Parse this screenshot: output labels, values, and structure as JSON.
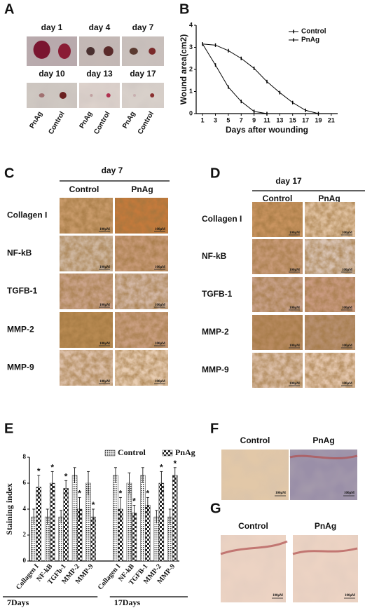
{
  "panel_labels": [
    "A",
    "B",
    "C",
    "D",
    "E",
    "F",
    "G"
  ],
  "panel_a": {
    "days": [
      "day 1",
      "day 4",
      "day   7",
      "day 10",
      "day 13",
      "day 17"
    ],
    "groups": [
      "PnAg",
      "Control"
    ]
  },
  "chart_data": [
    {
      "type": "line",
      "xlabel": "Days after wounding",
      "ylabel": "Wound area(cm2)",
      "xlim": [
        0,
        22
      ],
      "ylim": [
        0,
        4
      ],
      "xticks": [
        1,
        3,
        5,
        7,
        9,
        11,
        13,
        15,
        17,
        19,
        21
      ],
      "yticks": [
        0,
        1,
        2,
        3,
        4
      ],
      "x": [
        1,
        3,
        5,
        7,
        9,
        11,
        13,
        15,
        17,
        19
      ],
      "legend": "upper right",
      "series": [
        {
          "name": "Control",
          "color": "#000000",
          "values": [
            3.15,
            3.1,
            2.85,
            2.5,
            2.05,
            1.45,
            0.95,
            0.5,
            0.15,
            0
          ]
        },
        {
          "name": "PnAg",
          "color": "#000000",
          "values": [
            3.15,
            2.2,
            1.2,
            0.55,
            0.1,
            0,
            null,
            null,
            null,
            null
          ]
        }
      ]
    },
    {
      "type": "bar",
      "ylabel": "Staining index",
      "ylim": [
        0,
        8
      ],
      "yticks": [
        0,
        2,
        4,
        6,
        8
      ],
      "categories": [
        "Collagen I",
        "NF-kB",
        "TGFb-1",
        "MMP-2",
        "MMP-9",
        "Collagen I",
        "NF-kB",
        "TGFB-1",
        "MMP-2",
        "MMP-9"
      ],
      "groups": [
        "7Days",
        "17Days"
      ],
      "annotation": "*",
      "series": [
        {
          "name": "Control",
          "color": "#333333",
          "pattern": "dots",
          "values": [
            3.4,
            3.4,
            3.4,
            6.6,
            6.0,
            6.6,
            6.0,
            6.6,
            3.4,
            3.4
          ],
          "errors": [
            0.6,
            0.6,
            0.5,
            0.6,
            0.9,
            0.6,
            0.8,
            0.6,
            0.5,
            0.6
          ]
        },
        {
          "name": "PnAg",
          "color": "#333333",
          "pattern": "checker",
          "values": [
            5.7,
            6.0,
            5.6,
            4.0,
            3.4,
            4.0,
            3.7,
            4.3,
            6.0,
            6.6
          ],
          "errors": [
            0.9,
            0.9,
            0.6,
            0.9,
            0.6,
            0.9,
            0.6,
            0.6,
            0.9,
            0.6
          ]
        }
      ]
    }
  ],
  "panel_c": {
    "title": "day 7",
    "columns": [
      "Control",
      "PnAg"
    ],
    "rows": [
      "Collagen I",
      "NF-kB",
      "TGFB-1",
      "MMP-2",
      "MMP-9"
    ]
  },
  "panel_d": {
    "title": "day 17",
    "columns": [
      "Control",
      "PnAg"
    ],
    "rows": [
      "Collagen I",
      "NF-kB",
      "TGFB-1",
      "MMP-2",
      "MMP-9"
    ]
  },
  "panel_f": {
    "columns": [
      "Control",
      "PnAg"
    ]
  },
  "panel_g": {
    "columns": [
      "Control",
      "PnAg"
    ]
  },
  "scale_bar": "100μM"
}
